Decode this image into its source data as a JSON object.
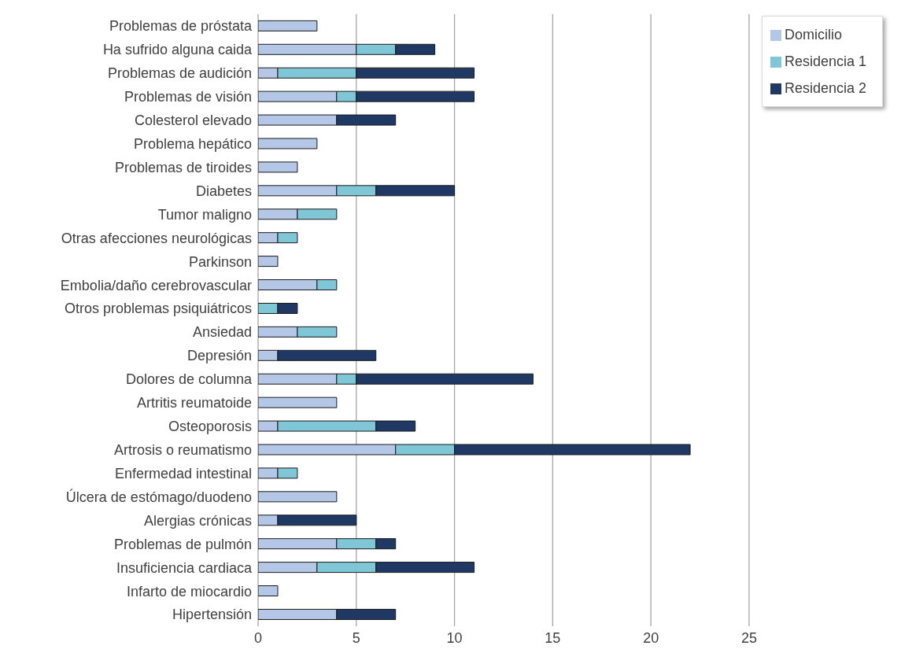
{
  "chart_data": {
    "type": "bar",
    "orientation": "horizontal",
    "stacked": true,
    "categories": [
      "Problemas de próstata",
      "Ha sufrido alguna caida",
      "Problemas de audición",
      "Problemas de visión",
      "Colesterol elevado",
      "Problema hepático",
      "Problemas de tiroides",
      "Diabetes",
      "Tumor maligno",
      "Otras afecciones neurológicas",
      "Parkinson",
      "Embolia/daño cerebrovascular",
      "Otros problemas psiquiátricos",
      "Ansiedad",
      "Depresión",
      "Dolores de columna",
      "Artritis reumatoide",
      "Osteoporosis",
      "Artrosis o reumatismo",
      "Enfermedad intestinal",
      "Úlcera de estómago/duodeno",
      "Alergias crónicas",
      "Problemas de pulmón",
      "Insuficiencia cardiaca",
      "Infarto de miocardio",
      "Hipertensión"
    ],
    "series": [
      {
        "name": "Domicilio",
        "color": "#b4c7e7",
        "values": [
          3,
          5,
          1,
          4,
          4,
          3,
          2,
          4,
          2,
          1,
          1,
          3,
          0,
          2,
          1,
          4,
          4,
          1,
          7,
          1,
          4,
          1,
          4,
          3,
          1,
          4
        ]
      },
      {
        "name": "Residencia 1",
        "color": "#7fc6d6",
        "values": [
          0,
          2,
          4,
          1,
          0,
          0,
          0,
          2,
          2,
          1,
          0,
          1,
          1,
          2,
          0,
          1,
          0,
          5,
          3,
          1,
          0,
          0,
          2,
          3,
          0,
          0
        ]
      },
      {
        "name": "Residencia 2",
        "color": "#1f3864",
        "values": [
          0,
          2,
          6,
          6,
          3,
          0,
          0,
          4,
          0,
          0,
          0,
          0,
          1,
          0,
          5,
          9,
          0,
          2,
          12,
          0,
          0,
          4,
          1,
          5,
          0,
          3
        ]
      }
    ],
    "xlim": [
      0,
      25
    ],
    "xticks": [
      0,
      5,
      10,
      15,
      20,
      25
    ],
    "grid": "x",
    "legend": "top right"
  }
}
